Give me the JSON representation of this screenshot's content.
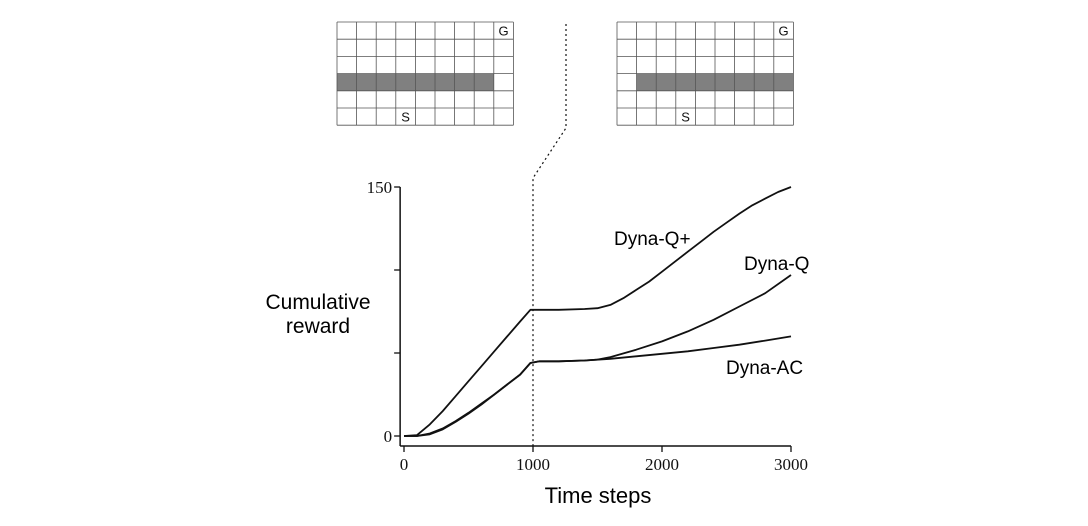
{
  "colors": {
    "line": "#111111",
    "wall": "#808080",
    "grid": "#555555",
    "background": "#ffffff"
  },
  "mazes": [
    {
      "rows": 6,
      "cols": 9,
      "goal_label": "G",
      "start_label": "S",
      "goal_cell": [
        0,
        8
      ],
      "start_cell": [
        5,
        3
      ],
      "wall_row": 3,
      "wall_cols": [
        0,
        7
      ]
    },
    {
      "rows": 6,
      "cols": 9,
      "goal_label": "G",
      "start_label": "S",
      "goal_cell": [
        0,
        8
      ],
      "start_cell": [
        5,
        3
      ],
      "wall_row": 3,
      "wall_cols": [
        1,
        8
      ]
    }
  ],
  "chart_data": {
    "type": "line",
    "title": "",
    "xlabel": "Time steps",
    "ylabel_lines": [
      "Cumulative",
      "reward"
    ],
    "xlim": [
      -30,
      3000
    ],
    "ylim": [
      0,
      150
    ],
    "xticks": [
      0,
      1000,
      2000,
      3000
    ],
    "xtick_labels": [
      "0",
      "1000",
      "2000",
      "3000"
    ],
    "yticks_labeled": [
      0,
      150
    ],
    "ytick_labels": [
      "0",
      "150"
    ],
    "yticks_minor": [
      50,
      100
    ],
    "grid": false,
    "change_marker_x": 1000,
    "series": [
      {
        "name": "Dyna-Q+",
        "x": [
          0,
          100,
          200,
          300,
          400,
          500,
          600,
          700,
          800,
          900,
          980,
          1050,
          1200,
          1400,
          1500,
          1600,
          1700,
          1800,
          1900,
          2000,
          2100,
          2200,
          2300,
          2400,
          2500,
          2600,
          2700,
          2800,
          2900,
          3000
        ],
        "y": [
          0,
          0.5,
          7,
          15,
          24,
          33,
          42,
          51,
          60,
          69,
          76,
          76,
          76,
          76.5,
          77,
          79,
          83,
          88,
          93,
          99,
          105,
          111,
          117,
          123,
          128.5,
          134,
          139,
          143,
          147,
          150
        ]
      },
      {
        "name": "Dyna-Q",
        "x": [
          0,
          100,
          200,
          300,
          400,
          500,
          600,
          700,
          800,
          900,
          980,
          1050,
          1200,
          1400,
          1500,
          1600,
          1800,
          2000,
          2200,
          2400,
          2600,
          2800,
          3000
        ],
        "y": [
          0,
          0,
          1.5,
          4.5,
          9,
          14,
          19.5,
          25,
          31,
          37,
          44,
          45,
          45,
          45.5,
          46,
          47.5,
          52,
          57,
          63,
          70,
          78,
          86,
          97
        ]
      },
      {
        "name": "Dyna-AC",
        "x": [
          0,
          100,
          200,
          300,
          400,
          500,
          600,
          700,
          800,
          900,
          980,
          1050,
          1200,
          1400,
          1600,
          1800,
          2000,
          2200,
          2400,
          2600,
          2800,
          3000
        ],
        "y": [
          0,
          0,
          1,
          4,
          8.5,
          13.5,
          19,
          25,
          31,
          37,
          44,
          45,
          45,
          45.5,
          46.5,
          48,
          49.5,
          51,
          53,
          55,
          57.5,
          60
        ]
      }
    ]
  }
}
